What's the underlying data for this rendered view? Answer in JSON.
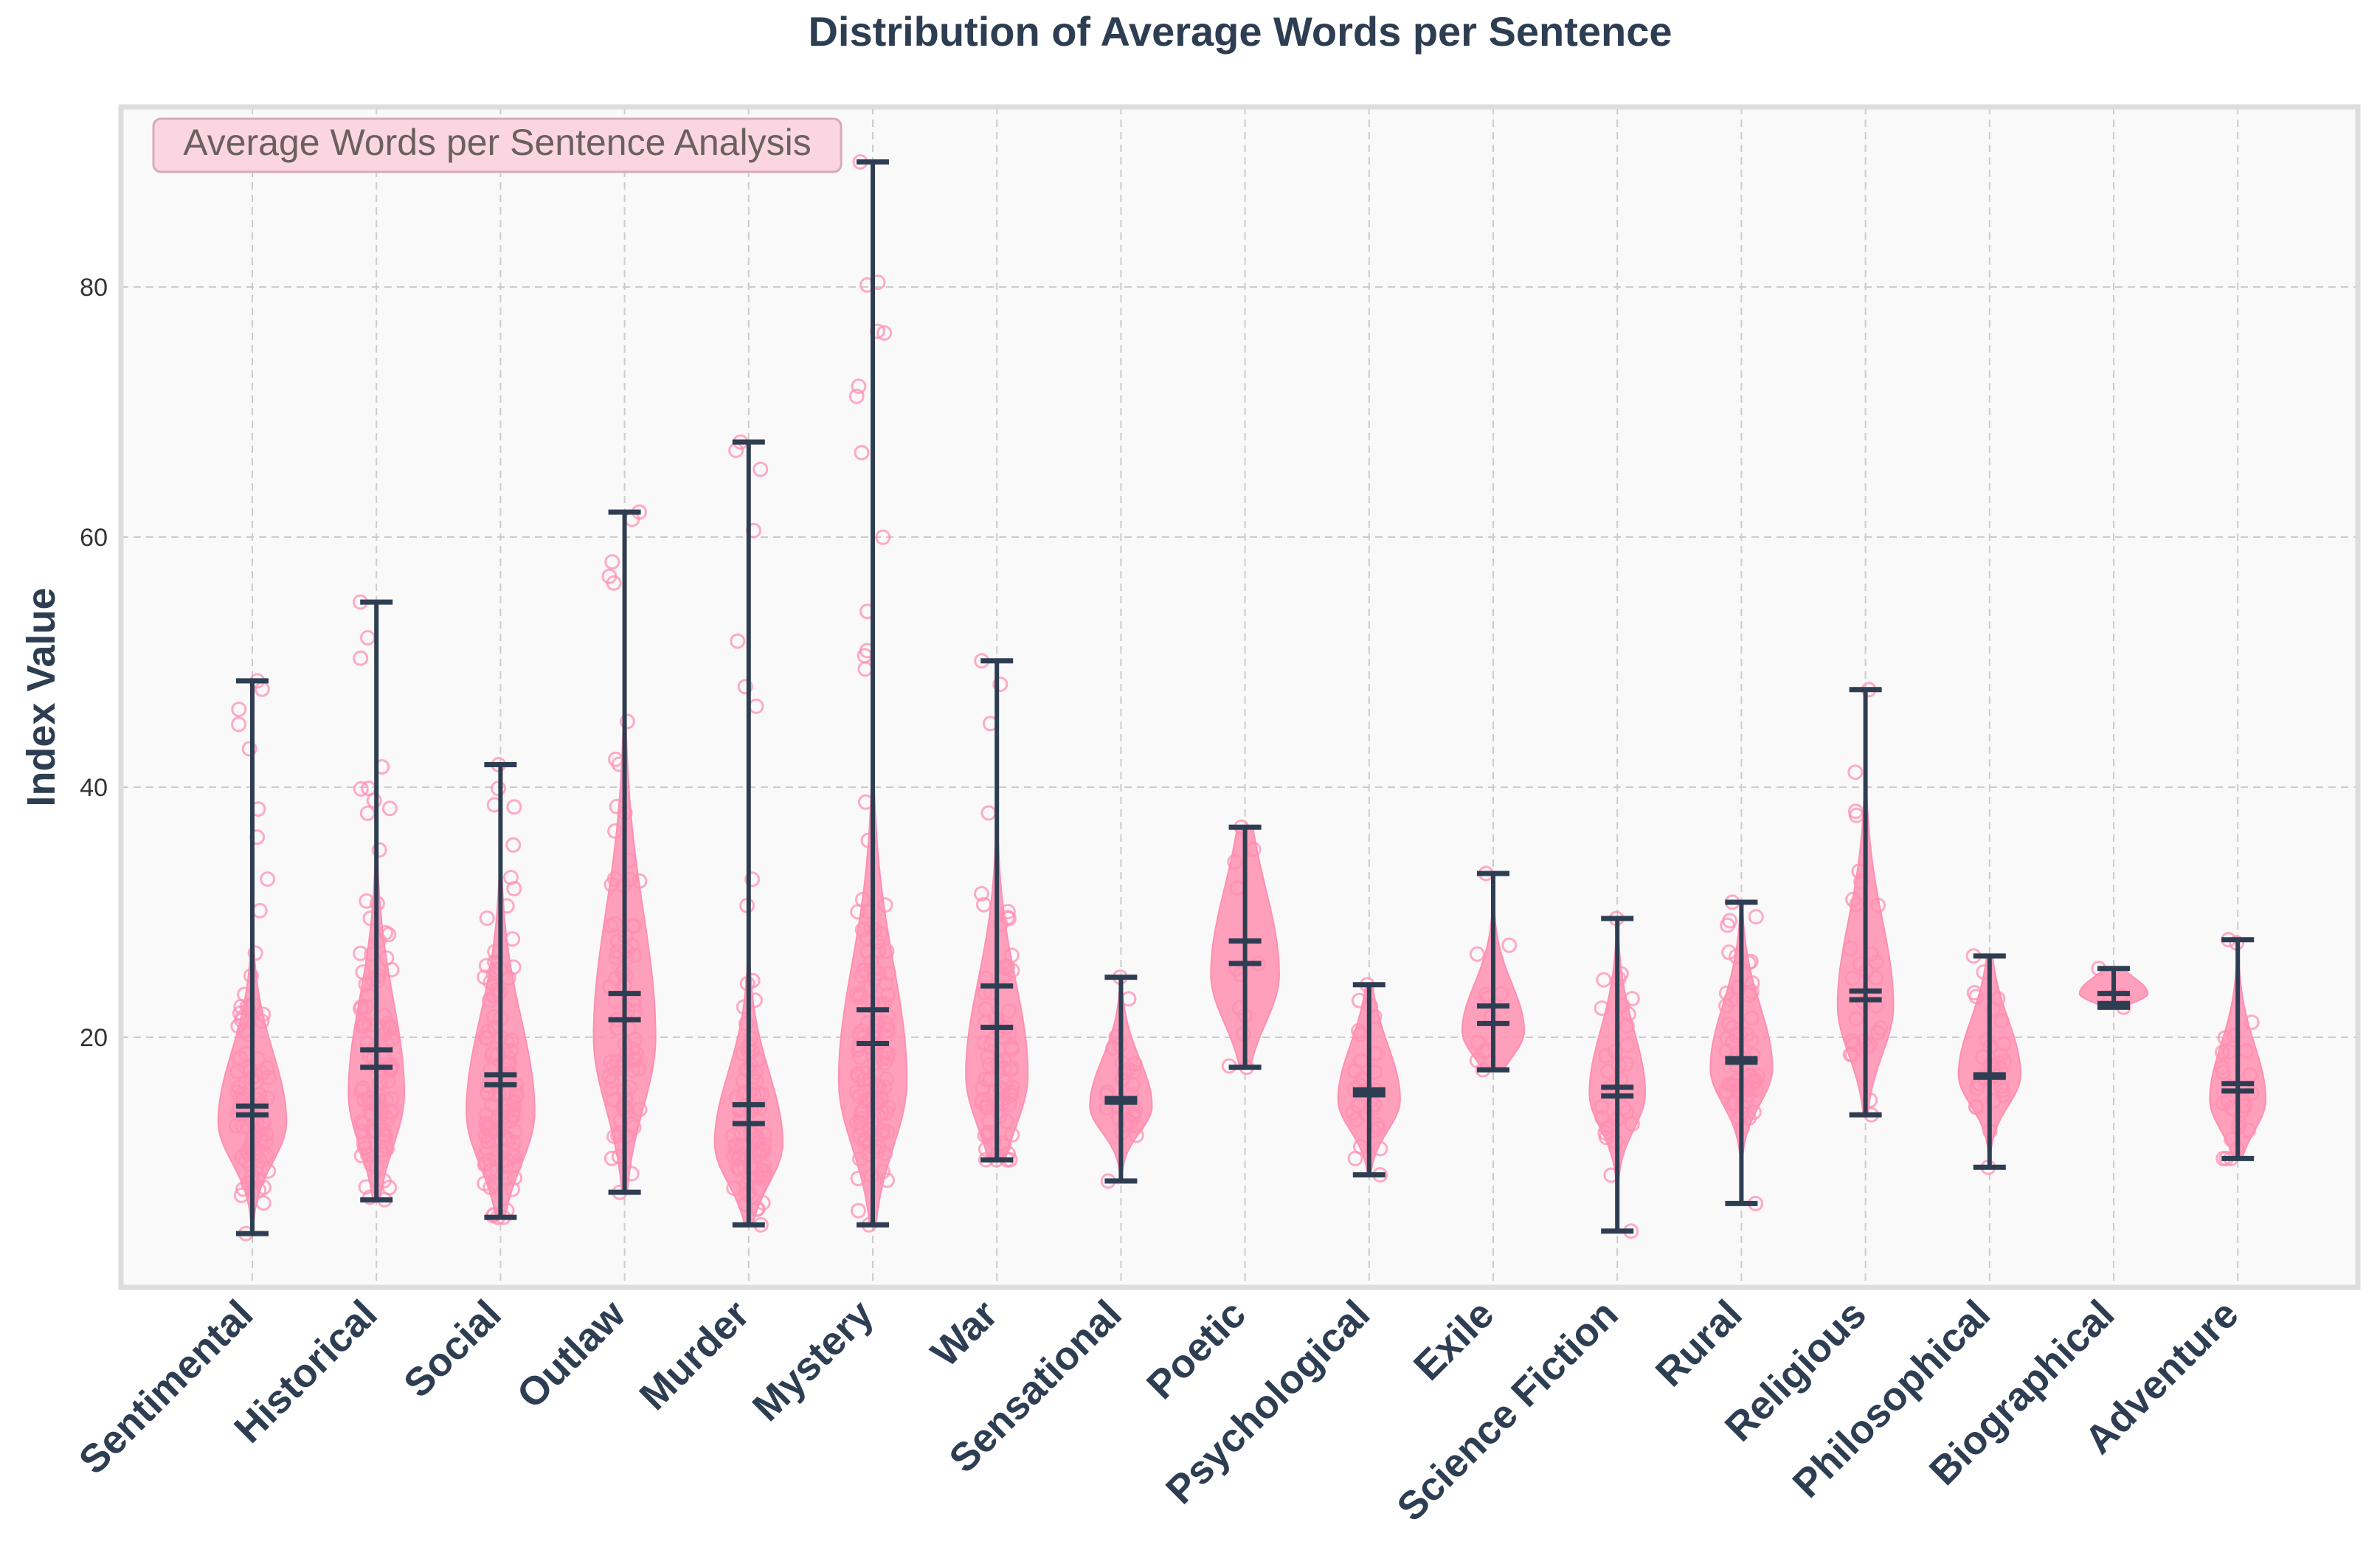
{
  "chart_data": {
    "type": "violin",
    "title": "Distribution of Average Words per Sentence",
    "xlabel": "",
    "ylabel": "Index Value",
    "annotation": "Average Words per Sentence Analysis",
    "ylim": [
      0,
      92
    ],
    "yticks": [
      20,
      40,
      60,
      80
    ],
    "grid": true,
    "colors": {
      "violin": "#ff8fb1",
      "lines": "#2e3e52",
      "points": "#ff8fb1",
      "annotation_bg": "#fbd6e2",
      "plot_bg": "#f9f9f9"
    },
    "categories": [
      "Sentimental",
      "Historical",
      "Social",
      "Outlaw",
      "Murder",
      "Mystery",
      "War",
      "Sensational",
      "Poetic",
      "Psychological",
      "Exile",
      "Science Fiction",
      "Rural",
      "Religious",
      "Philosophical",
      "Biographical",
      "Adventure"
    ],
    "series": [
      {
        "name": "Sentimental",
        "min": 4.3,
        "max": 48.5,
        "median": 13.8,
        "mean": 14.5,
        "mode": 13.2,
        "spread": 4.5,
        "width": 0.55,
        "n": 90
      },
      {
        "name": "Historical",
        "min": 7.0,
        "max": 54.8,
        "median": 17.6,
        "mean": 19.0,
        "mode": 15.5,
        "spread": 6.0,
        "width": 0.45,
        "n": 110
      },
      {
        "name": "Social",
        "min": 5.6,
        "max": 41.8,
        "median": 16.2,
        "mean": 17.0,
        "mode": 14.0,
        "spread": 6.0,
        "width": 0.55,
        "n": 120
      },
      {
        "name": "Outlaw",
        "min": 7.6,
        "max": 62.0,
        "median": 21.4,
        "mean": 23.5,
        "mode": 20.0,
        "spread": 8.0,
        "width": 0.5,
        "n": 80
      },
      {
        "name": "Murder",
        "min": 5.0,
        "max": 67.6,
        "median": 13.1,
        "mean": 14.6,
        "mode": 11.5,
        "spread": 4.5,
        "width": 0.55,
        "n": 90
      },
      {
        "name": "Mystery",
        "min": 5.0,
        "max": 90.0,
        "median": 19.5,
        "mean": 22.2,
        "mode": 16.5,
        "spread": 7.5,
        "width": 0.55,
        "n": 130
      },
      {
        "name": "War",
        "min": 10.2,
        "max": 50.1,
        "median": 20.8,
        "mean": 24.1,
        "mode": 17.0,
        "spread": 6.0,
        "width": 0.5,
        "n": 80
      },
      {
        "name": "Sensational",
        "min": 8.5,
        "max": 24.8,
        "median": 14.8,
        "mean": 15.1,
        "mode": 14.5,
        "spread": 3.0,
        "width": 0.5,
        "n": 30
      },
      {
        "name": "Poetic",
        "min": 17.6,
        "max": 36.8,
        "median": 25.9,
        "mean": 27.7,
        "mode": 25.0,
        "spread": 5.5,
        "width": 0.55,
        "n": 12
      },
      {
        "name": "Psychological",
        "min": 9.0,
        "max": 24.2,
        "median": 15.4,
        "mean": 15.8,
        "mode": 15.0,
        "spread": 3.5,
        "width": 0.5,
        "n": 30
      },
      {
        "name": "Exile",
        "min": 17.4,
        "max": 33.1,
        "median": 21.1,
        "mean": 22.5,
        "mode": 20.5,
        "spread": 3.0,
        "width": 0.5,
        "n": 12
      },
      {
        "name": "Science Fiction",
        "min": 4.5,
        "max": 29.5,
        "median": 15.3,
        "mean": 16.0,
        "mode": 15.5,
        "spread": 4.0,
        "width": 0.45,
        "n": 30
      },
      {
        "name": "Rural",
        "min": 6.7,
        "max": 30.8,
        "median": 18.0,
        "mean": 18.3,
        "mode": 17.5,
        "spread": 4.0,
        "width": 0.5,
        "n": 60
      },
      {
        "name": "Religious",
        "min": 13.8,
        "max": 47.8,
        "median": 23.0,
        "mean": 23.7,
        "mode": 22.5,
        "spread": 5.5,
        "width": 0.45,
        "n": 30
      },
      {
        "name": "Philosophical",
        "min": 9.6,
        "max": 26.5,
        "median": 16.8,
        "mean": 17.0,
        "mode": 17.0,
        "spread": 3.5,
        "width": 0.5,
        "n": 30
      },
      {
        "name": "Biographical",
        "min": 22.4,
        "max": 25.5,
        "median": 22.7,
        "mean": 23.5,
        "mode": 23.5,
        "spread": 1.0,
        "width": 0.55,
        "n": 4
      },
      {
        "name": "Adventure",
        "min": 10.3,
        "max": 27.8,
        "median": 15.7,
        "mean": 16.3,
        "mode": 15.0,
        "spread": 3.5,
        "width": 0.45,
        "n": 30
      }
    ]
  }
}
